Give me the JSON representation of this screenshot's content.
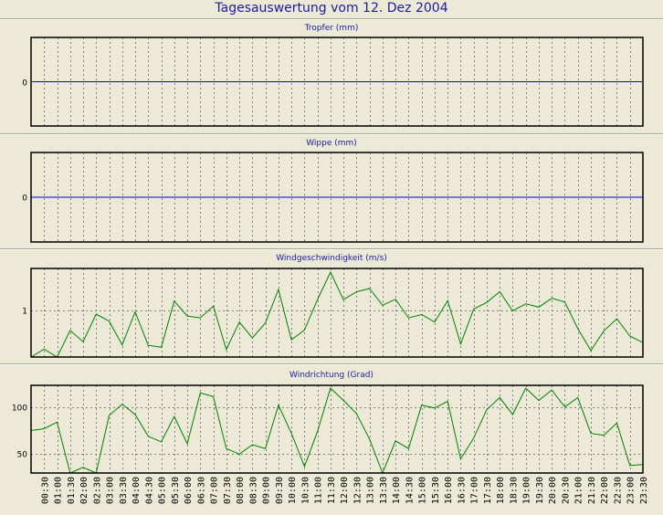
{
  "title": "Tagesauswertung vom 12. Dez 2004",
  "colors": {
    "title": "#1a1aa8",
    "background": "#ecead7",
    "zero_line": "#0000cc",
    "series": "#008000"
  },
  "time_labels": [
    "00:30",
    "01:00",
    "01:30",
    "02:00",
    "02:30",
    "03:00",
    "03:30",
    "04:00",
    "04:30",
    "05:00",
    "05:30",
    "06:00",
    "06:30",
    "07:00",
    "07:30",
    "08:00",
    "08:30",
    "09:00",
    "09:30",
    "10:00",
    "10:30",
    "11:00",
    "11:30",
    "12:00",
    "12:30",
    "13:00",
    "13:30",
    "14:00",
    "14:30",
    "15:00",
    "15:30",
    "16:00",
    "16:30",
    "17:00",
    "17:30",
    "18:00",
    "18:30",
    "19:00",
    "19:30",
    "20:00",
    "20:30",
    "21:00",
    "21:30",
    "22:00",
    "22:30",
    "23:00",
    "23:30"
  ],
  "chart_data": [
    {
      "type": "line",
      "title": "Tropfer (mm)",
      "yticks": [
        0
      ],
      "ylim": [
        -1,
        1
      ],
      "series": [
        {
          "values": [
            0,
            0,
            0,
            0,
            0,
            0,
            0,
            0,
            0,
            0,
            0,
            0,
            0,
            0,
            0,
            0,
            0,
            0,
            0,
            0,
            0,
            0,
            0,
            0,
            0,
            0,
            0,
            0,
            0,
            0,
            0,
            0,
            0,
            0,
            0,
            0,
            0,
            0,
            0,
            0,
            0,
            0,
            0,
            0,
            0,
            0,
            0,
            0
          ]
        }
      ],
      "grid": true
    },
    {
      "type": "line",
      "title": "Wippe (mm)",
      "yticks": [
        0
      ],
      "ylim": [
        -1,
        1
      ],
      "series": [
        {
          "values": [
            0,
            0,
            0,
            0,
            0,
            0,
            0,
            0,
            0,
            0,
            0,
            0,
            0,
            0,
            0,
            0,
            0,
            0,
            0,
            0,
            0,
            0,
            0,
            0,
            0,
            0,
            0,
            0,
            0,
            0,
            0,
            0,
            0,
            0,
            0,
            0,
            0,
            0,
            0,
            0,
            0,
            0,
            0,
            0,
            0,
            0,
            0,
            0
          ]
        }
      ],
      "grid": true
    },
    {
      "type": "line",
      "title": "Windgeschwindigkeit (m/s)",
      "yticks": [
        1
      ],
      "ylim": [
        0,
        1.9
      ],
      "series": [
        {
          "values": [
            0.0,
            0.17,
            0.0,
            0.57,
            0.33,
            0.92,
            0.77,
            0.26,
            0.97,
            0.25,
            0.21,
            1.2,
            0.88,
            0.84,
            1.09,
            0.16,
            0.75,
            0.41,
            0.73,
            1.45,
            0.37,
            0.58,
            1.23,
            1.82,
            1.23,
            1.4,
            1.47,
            1.11,
            1.24,
            0.84,
            0.91,
            0.75,
            1.21,
            0.28,
            1.03,
            1.17,
            1.4,
            0.99,
            1.14,
            1.07,
            1.26,
            1.18,
            0.61,
            0.14,
            0.56,
            0.82,
            0.45,
            0.31
          ]
        }
      ],
      "grid": true
    },
    {
      "type": "line",
      "title": "Windrichtung (Grad)",
      "yticks": [
        50,
        100
      ],
      "ylim": [
        30,
        123
      ],
      "series": [
        {
          "values": [
            75,
            77,
            84,
            30,
            36,
            30,
            91,
            103,
            92,
            69,
            63,
            90,
            61,
            115,
            111,
            56,
            50,
            60,
            56,
            102,
            72,
            37,
            74,
            120,
            107,
            93,
            66,
            30,
            64,
            56,
            102,
            99,
            106,
            45,
            67,
            97,
            110,
            92,
            120,
            107,
            118,
            100,
            110,
            72,
            70,
            83,
            38,
            39
          ]
        }
      ],
      "grid": true
    }
  ]
}
